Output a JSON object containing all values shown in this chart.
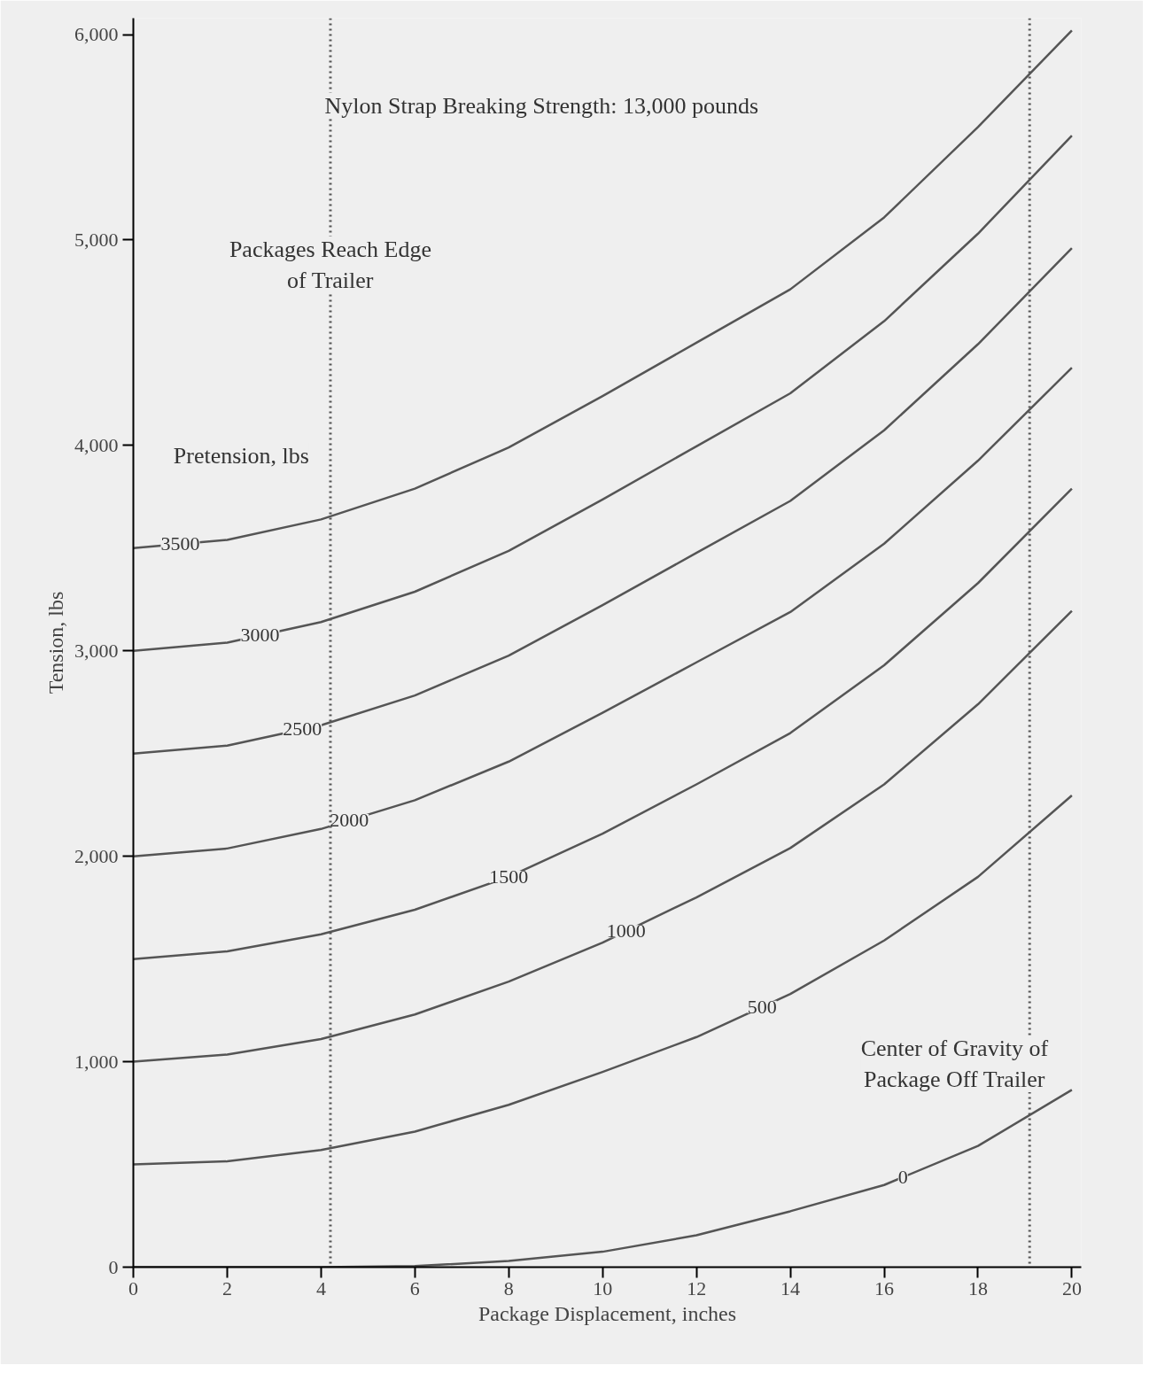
{
  "chart_data": {
    "type": "line",
    "xlabel": "Package Displacement, inches",
    "ylabel": "Tension, lbs",
    "x": [
      0,
      2,
      4,
      6,
      8,
      10,
      12,
      14,
      16,
      18,
      20
    ],
    "series": [
      {
        "name": "3500",
        "color": "#555555",
        "values": [
          3500,
          3540,
          3640,
          3790,
          3990,
          4240,
          4500,
          4760,
          5110,
          5550,
          6020
        ]
      },
      {
        "name": "3000",
        "color": "#555555",
        "values": [
          3000,
          3040,
          3140,
          3288,
          3487,
          3737,
          3996,
          4254,
          4605,
          5031,
          5508
        ]
      },
      {
        "name": "2500",
        "color": "#555555",
        "values": [
          2500,
          2539,
          2638,
          2783,
          2977,
          3223,
          3477,
          3730,
          4074,
          4493,
          4960
        ]
      },
      {
        "name": "2000",
        "color": "#555555",
        "values": [
          2000,
          2038,
          2133,
          2273,
          2461,
          2699,
          2944,
          3189,
          3522,
          3926,
          4378
        ]
      },
      {
        "name": "1500",
        "color": "#555555",
        "values": [
          1500,
          1537,
          1620,
          1740,
          1900,
          2110,
          2350,
          2600,
          2930,
          3330,
          3790
        ]
      },
      {
        "name": "1000",
        "color": "#555555",
        "values": [
          1000,
          1035,
          1110,
          1230,
          1390,
          1580,
          1800,
          2040,
          2350,
          2740,
          3195
        ]
      },
      {
        "name": "500",
        "color": "#555555",
        "values": [
          500,
          515,
          570,
          660,
          790,
          950,
          1120,
          1330,
          1590,
          1900,
          2296
        ]
      },
      {
        "name": "0",
        "color": "#555555",
        "values": [
          0,
          0,
          0,
          5,
          30,
          75,
          155,
          272,
          400,
          590,
          863
        ]
      }
    ],
    "xlim": [
      0,
      20.2
    ],
    "ylim": [
      0,
      6080
    ],
    "xticks": [
      0,
      2,
      4,
      6,
      8,
      10,
      12,
      14,
      16,
      18,
      20
    ],
    "yticks": [
      0,
      {
        "value": 1000,
        "label": "1,000"
      },
      {
        "value": 2000,
        "label": "2,000"
      },
      {
        "value": 3000,
        "label": "3,000"
      },
      {
        "value": 4000,
        "label": "4,000"
      },
      {
        "value": 5000,
        "label": "5,000"
      },
      {
        "value": 6000,
        "label": "6,000"
      }
    ],
    "grid": false,
    "marker": "none",
    "line_style": "solid",
    "ref_lines": [
      {
        "axis": "x",
        "value": 4.2,
        "label": "Packages Reach Edge of Trailer",
        "line_style": "dotted",
        "color": "#555555"
      },
      {
        "axis": "x",
        "value": 19.1,
        "label": "Center of Gravity of Package Off Trailer",
        "line_style": "dotted",
        "color": "#555555"
      }
    ],
    "annotations": [
      "Nylon Strap Breaking Strength: 13,000 pounds",
      "Pretension, lbs"
    ]
  }
}
